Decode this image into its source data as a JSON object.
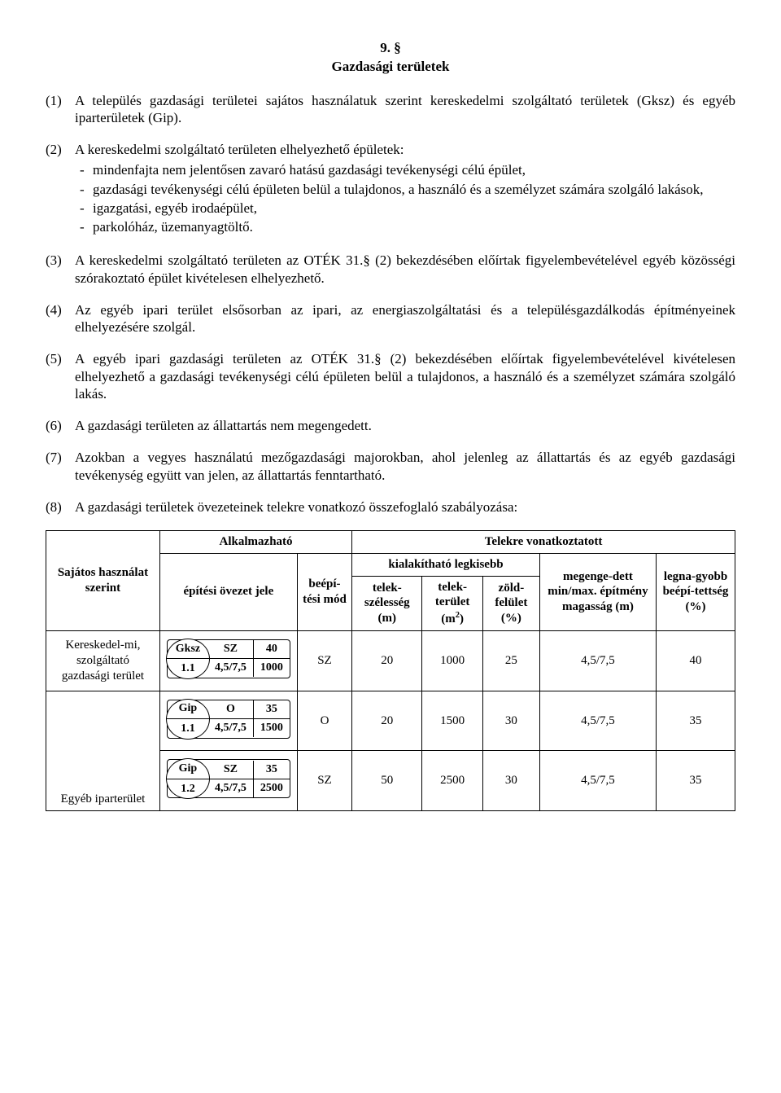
{
  "header": {
    "number": "9. §",
    "title": "Gazdasági területek"
  },
  "paragraphs": {
    "p1": {
      "num": "(1)",
      "text": "A település gazdasági területei sajátos használatuk szerint kereskedelmi szolgáltató területek (Gksz) és egyéb iparterületek (Gip)."
    },
    "p2": {
      "num": "(2)",
      "lead": "A kereskedelmi szolgáltató területen elhelyezhető épületek:",
      "items": [
        "mindenfajta nem jelentősen zavaró hatású gazdasági tevékenységi célú épület,",
        "gazdasági tevékenységi célú épületen belül a tulajdonos, a használó és a személyzet számára szolgáló lakások,",
        "igazgatási, egyéb irodaépület,",
        "parkolóház, üzemanyagtöltő."
      ]
    },
    "p3": {
      "num": "(3)",
      "text": "A kereskedelmi szolgáltató területen az OTÉK 31.§ (2) bekezdésében előírtak figyelembevételével egyéb közösségi szórakoztató épület kivételesen elhelyezhető."
    },
    "p4": {
      "num": "(4)",
      "text": "Az egyéb ipari terület elsősorban az ipari, az energiaszolgáltatási és a településgazdálkodás építményeinek elhelyezésére szolgál."
    },
    "p5": {
      "num": "(5)",
      "text": "A egyéb ipari gazdasági területen az OTÉK 31.§ (2) bekezdésében előírtak figyelembevételével kivételesen elhelyezhető a gazdasági tevékenységi célú épületen belül a tulajdonos, a használó és a személyzet számára szolgáló lakás."
    },
    "p6": {
      "num": "(6)",
      "text": "A gazdasági területen az állattartás nem megengedett."
    },
    "p7": {
      "num": "(7)",
      "text": "Azokban a vegyes használatú mezőgazdasági majorokban, ahol jelenleg az állattartás és az egyéb gazdasági tevékenység együtt van jelen, az állattartás fenntartható."
    },
    "p8": {
      "num": "(8)",
      "text": "A gazdasági területek övezeteinek telekre vonatkozó összefoglaló szabályozása:"
    }
  },
  "table": {
    "head": {
      "rowhead": "Sajátos használat szerint",
      "groupA": "Alkalmazható",
      "groupB": "Telekre vonatkoztatott",
      "colA1": "építési övezet jele",
      "colA2": "beépí-tési mód",
      "groupB1": "kialakítható legkisebb",
      "colB1a": "telek-szélesség (m)",
      "colB1b_html": "telek-terület (m²)",
      "colB1c": "zöld-felület (%)",
      "colB2": "megenge-dett min/max. építmény magasság (m)",
      "colB3": "legna-gyobb beépí-tettség (%)"
    },
    "rows": [
      {
        "label": "Kereskedel-mi, szolgáltató gazdasági terület",
        "zone": {
          "code_top": "Gksz",
          "code_bot": "1.1",
          "c2_top": "SZ",
          "c2_bot": "4,5/7,5",
          "c3_top": "40",
          "c3_bot": "1000"
        },
        "mode": "SZ",
        "width": "20",
        "area": "1000",
        "green": "25",
        "height": "4,5/7,5",
        "cover": "40"
      },
      {
        "label": "",
        "zone": {
          "code_top": "Gip",
          "code_bot": "1.1",
          "c2_top": "O",
          "c2_bot": "4,5/7,5",
          "c3_top": "35",
          "c3_bot": "1500"
        },
        "mode": "O",
        "width": "20",
        "area": "1500",
        "green": "30",
        "height": "4,5/7,5",
        "cover": "35",
        "group_label": "Egyéb iparterület"
      },
      {
        "label": "",
        "zone": {
          "code_top": "Gip",
          "code_bot": "1.2",
          "c2_top": "SZ",
          "c2_bot": "4,5/7,5",
          "c3_top": "35",
          "c3_bot": "2500"
        },
        "mode": "SZ",
        "width": "50",
        "area": "2500",
        "green": "30",
        "height": "4,5/7,5",
        "cover": "35"
      }
    ]
  }
}
